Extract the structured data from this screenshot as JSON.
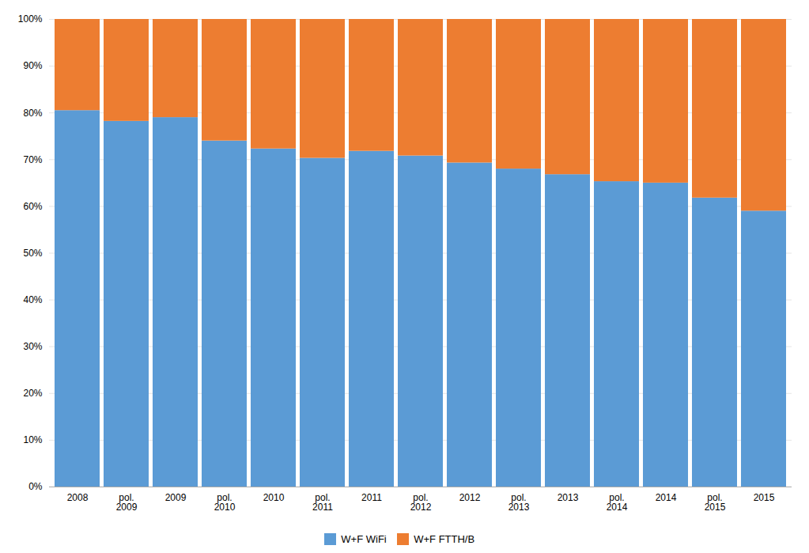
{
  "chart_data": {
    "type": "bar",
    "stacked": true,
    "categories": [
      "2008",
      "pol.\n2009",
      "2009",
      "pol.\n2010",
      "2010",
      "pol.\n2011",
      "2011",
      "pol.\n2012",
      "2012",
      "pol.\n2013",
      "2013",
      "pol.\n2014",
      "2014",
      "pol.\n2015",
      "2015"
    ],
    "series": [
      {
        "name": "W+F WiFi",
        "color": "#5B9BD5",
        "values": [
          80.5,
          78.2,
          79.0,
          74.0,
          72.3,
          70.3,
          71.8,
          70.8,
          69.3,
          68.0,
          66.8,
          65.3,
          65.0,
          61.8,
          59.0
        ]
      },
      {
        "name": "W+F FTTH/B",
        "color": "#ED7D31",
        "values": [
          19.5,
          21.8,
          21.0,
          26.0,
          27.7,
          29.7,
          28.2,
          29.2,
          30.7,
          32.0,
          33.2,
          34.7,
          35.0,
          38.2,
          41.0
        ]
      }
    ],
    "ylim": [
      0,
      100
    ],
    "yticks": [
      {
        "value": 0,
        "label": "0%"
      },
      {
        "value": 10,
        "label": "10%"
      },
      {
        "value": 20,
        "label": "20%"
      },
      {
        "value": 30,
        "label": "30%"
      },
      {
        "value": 40,
        "label": "40%"
      },
      {
        "value": 50,
        "label": "50%"
      },
      {
        "value": 60,
        "label": "60%"
      },
      {
        "value": 70,
        "label": "70%"
      },
      {
        "value": 80,
        "label": "80%"
      },
      {
        "value": 90,
        "label": "90%"
      },
      {
        "value": 100,
        "label": "100%"
      }
    ],
    "grid": true,
    "legend": "bottom"
  }
}
